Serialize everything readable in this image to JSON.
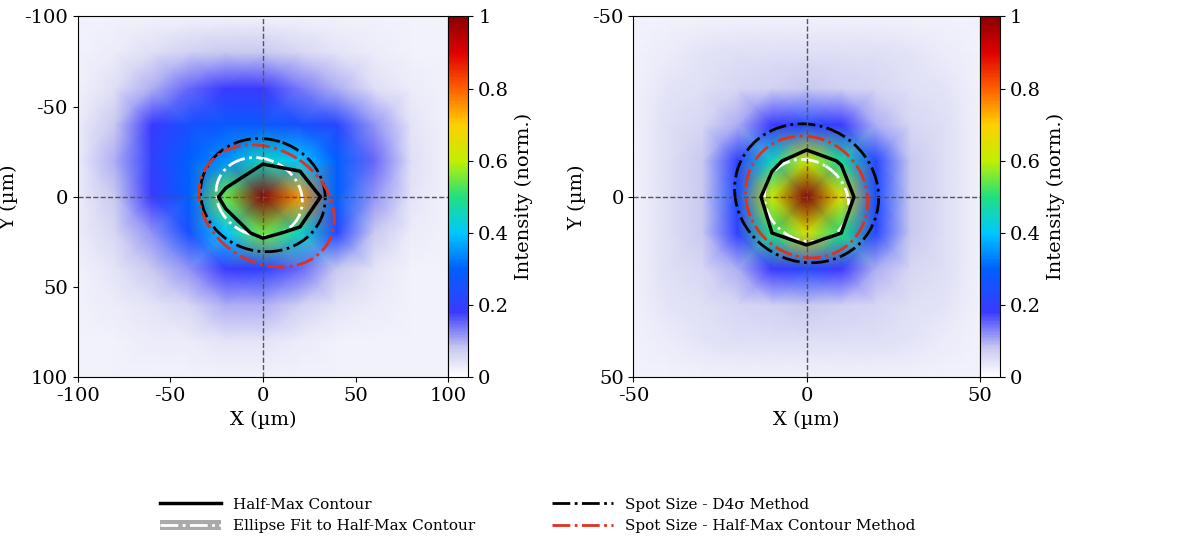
{
  "chart_data": [
    {
      "type": "heatmap",
      "x_label": "X (µm)",
      "y_label": "Y (µm)",
      "xlim": [
        -100,
        100
      ],
      "ylim": [
        100,
        -100
      ],
      "xticks": [
        -100,
        -50,
        0,
        50,
        100
      ],
      "yticks": [
        -100,
        -50,
        0,
        50,
        100
      ],
      "x": [
        -100,
        -80,
        -60,
        -40,
        -20,
        0,
        20,
        40,
        60,
        80,
        100
      ],
      "y": [
        -100,
        -80,
        -60,
        -40,
        -20,
        0,
        20,
        40,
        60,
        80,
        100
      ],
      "cells": [
        [
          0.02,
          0.02,
          0.02,
          0.02,
          0.02,
          0.02,
          0.02,
          0.02,
          0.02,
          0.02,
          0.02
        ],
        [
          0.02,
          0.03,
          0.05,
          0.07,
          0.08,
          0.08,
          0.06,
          0.04,
          0.03,
          0.02,
          0.02
        ],
        [
          0.02,
          0.05,
          0.1,
          0.15,
          0.18,
          0.18,
          0.14,
          0.1,
          0.05,
          0.03,
          0.02
        ],
        [
          0.03,
          0.08,
          0.18,
          0.25,
          0.28,
          0.28,
          0.25,
          0.22,
          0.12,
          0.04,
          0.02
        ],
        [
          0.03,
          0.1,
          0.2,
          0.3,
          0.35,
          0.45,
          0.4,
          0.3,
          0.15,
          0.05,
          0.02
        ],
        [
          0.03,
          0.08,
          0.18,
          0.3,
          0.55,
          1.0,
          0.75,
          0.3,
          0.12,
          0.04,
          0.02
        ],
        [
          0.03,
          0.06,
          0.12,
          0.25,
          0.4,
          0.55,
          0.45,
          0.22,
          0.08,
          0.03,
          0.02
        ],
        [
          0.02,
          0.04,
          0.08,
          0.12,
          0.18,
          0.2,
          0.15,
          0.08,
          0.04,
          0.02,
          0.02
        ],
        [
          0.02,
          0.03,
          0.04,
          0.06,
          0.1,
          0.1,
          0.07,
          0.04,
          0.03,
          0.02,
          0.02
        ],
        [
          0.02,
          0.02,
          0.03,
          0.03,
          0.04,
          0.04,
          0.03,
          0.02,
          0.02,
          0.02,
          0.02
        ],
        [
          0.02,
          0.02,
          0.02,
          0.02,
          0.02,
          0.02,
          0.02,
          0.02,
          0.02,
          0.02,
          0.02
        ]
      ],
      "colorbar_range": [
        0,
        1
      ],
      "colorbar_ticks": [
        0,
        0.2,
        0.4,
        0.6,
        0.8,
        1
      ],
      "colorbar_label": "Intensity (norm.)",
      "legend": "lower center",
      "series": [
        {
          "name": "Half-Max Contour",
          "type": "contour",
          "level": 0.5,
          "color": "#000000",
          "line_style": "solid"
        },
        {
          "name": "Ellipse Fit to Half-Max Contour",
          "type": "ellipse",
          "center": [
            -2,
            0
          ],
          "width": 48,
          "height": 42,
          "angle": 30,
          "color": "#ffffff",
          "line_style": "dashdot"
        },
        {
          "name": "Spot Size - D4σ Method",
          "type": "ellipse",
          "center": [
            0,
            -1
          ],
          "width": 68,
          "height": 62,
          "angle": 20,
          "color": "#000000",
          "line_style": "dashdot"
        },
        {
          "name": "Spot Size - Half-Max Contour Method",
          "type": "ellipse",
          "center": [
            2,
            5
          ],
          "width": 78,
          "height": 62,
          "angle": 35,
          "color": "#e03020",
          "line_style": "dashdot"
        }
      ]
    },
    {
      "type": "heatmap",
      "x_label": "X (µm)",
      "y_label": "Y (µm)",
      "xlim": [
        -50,
        50
      ],
      "ylim": [
        50,
        -50
      ],
      "xticks": [
        -50,
        0,
        50
      ],
      "yticks": [
        -50,
        0,
        50
      ],
      "x": [
        -50,
        -40,
        -30,
        -20,
        -10,
        0,
        10,
        20,
        30,
        40,
        50
      ],
      "y": [
        -50,
        -40,
        -30,
        -20,
        -10,
        0,
        10,
        20,
        30,
        40,
        50
      ],
      "cells": [
        [
          0.02,
          0.02,
          0.02,
          0.02,
          0.02,
          0.02,
          0.02,
          0.02,
          0.02,
          0.02,
          0.02
        ],
        [
          0.02,
          0.03,
          0.04,
          0.05,
          0.05,
          0.05,
          0.05,
          0.05,
          0.04,
          0.03,
          0.02
        ],
        [
          0.02,
          0.04,
          0.05,
          0.06,
          0.07,
          0.08,
          0.07,
          0.06,
          0.05,
          0.04,
          0.02
        ],
        [
          0.02,
          0.05,
          0.06,
          0.1,
          0.18,
          0.22,
          0.18,
          0.1,
          0.06,
          0.05,
          0.02
        ],
        [
          0.02,
          0.05,
          0.08,
          0.2,
          0.45,
          0.62,
          0.48,
          0.22,
          0.08,
          0.05,
          0.02
        ],
        [
          0.02,
          0.05,
          0.08,
          0.24,
          0.62,
          1.0,
          0.65,
          0.24,
          0.08,
          0.05,
          0.02
        ],
        [
          0.02,
          0.05,
          0.08,
          0.2,
          0.5,
          0.64,
          0.5,
          0.22,
          0.08,
          0.05,
          0.02
        ],
        [
          0.02,
          0.05,
          0.06,
          0.1,
          0.18,
          0.22,
          0.18,
          0.1,
          0.06,
          0.05,
          0.02
        ],
        [
          0.02,
          0.04,
          0.05,
          0.06,
          0.07,
          0.08,
          0.07,
          0.06,
          0.05,
          0.04,
          0.02
        ],
        [
          0.02,
          0.03,
          0.04,
          0.05,
          0.05,
          0.05,
          0.05,
          0.05,
          0.04,
          0.03,
          0.02
        ],
        [
          0.02,
          0.02,
          0.02,
          0.02,
          0.02,
          0.02,
          0.02,
          0.02,
          0.02,
          0.02,
          0.02
        ]
      ],
      "colorbar_range": [
        0,
        1
      ],
      "colorbar_ticks": [
        0,
        0.2,
        0.4,
        0.6,
        0.8,
        1
      ],
      "colorbar_label": "Intensity (norm.)",
      "legend": "lower center",
      "series": [
        {
          "name": "Half-Max Contour",
          "type": "contour",
          "level": 0.5,
          "color": "#000000",
          "line_style": "solid"
        },
        {
          "name": "Ellipse Fit to Half-Max Contour",
          "type": "ellipse",
          "center": [
            0,
            1
          ],
          "width": 25,
          "height": 22,
          "angle": 30,
          "color": "#ffffff",
          "line_style": "dashdot"
        },
        {
          "name": "Spot Size - D4σ Method",
          "type": "ellipse",
          "center": [
            0,
            -1
          ],
          "width": 42,
          "height": 38,
          "angle": 20,
          "color": "#000000",
          "line_style": "dashdot"
        },
        {
          "name": "Spot Size - Half-Max Contour Method",
          "type": "ellipse",
          "center": [
            0,
            0
          ],
          "width": 36,
          "height": 33,
          "angle": 30,
          "color": "#e03020",
          "line_style": "dashdot"
        }
      ]
    }
  ]
}
